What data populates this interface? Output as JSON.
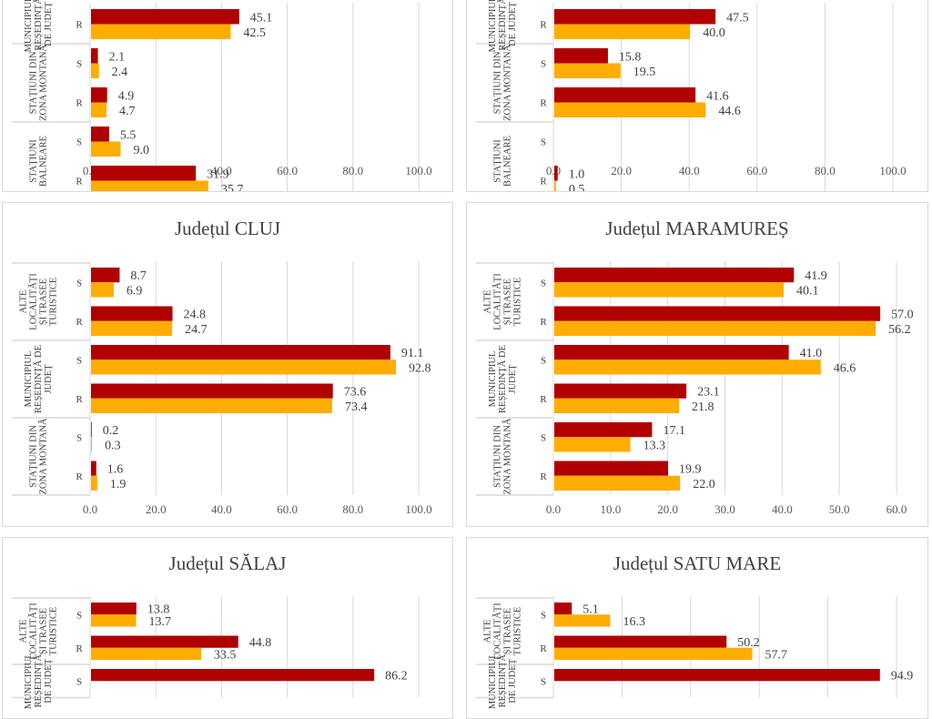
{
  "colors": {
    "series1": "#b00000",
    "series2": "#ffad00",
    "grid": "#d9d9d9",
    "text": "#404040"
  },
  "chart_data": [
    {
      "type": "bar",
      "orientation": "horizontal",
      "title": "",
      "title_visible": false,
      "xlim": [
        0,
        100
      ],
      "ticks": [
        "0.0",
        "20.0",
        "40.0",
        "60.0",
        "80.0",
        "100.0"
      ],
      "tick_values": [
        0,
        20,
        40,
        60,
        80,
        100
      ],
      "groups": [
        {
          "label": "MUNICIPIUL REȘEDINȚĂ DE JUDEȚ",
          "partial": true,
          "rows": [
            {
              "sub": "R",
              "values": [
                45.1,
                42.5
              ]
            }
          ]
        },
        {
          "label": "STAȚIUNI DIN ZONA MONTANĂ",
          "rows": [
            {
              "sub": "S",
              "values": [
                2.1,
                2.4
              ]
            },
            {
              "sub": "R",
              "values": [
                4.9,
                4.7
              ]
            }
          ]
        },
        {
          "label": "STAȚIUNI BALNEARE",
          "rows": [
            {
              "sub": "S",
              "values": [
                5.5,
                9.0
              ]
            },
            {
              "sub": "R",
              "values": [
                31.9,
                35.7
              ]
            }
          ]
        }
      ]
    },
    {
      "type": "bar",
      "orientation": "horizontal",
      "title": "",
      "title_visible": false,
      "xlim": [
        0,
        100
      ],
      "ticks": [
        "0.0",
        "20.0",
        "40.0",
        "60.0",
        "80.0",
        "100.0"
      ],
      "tick_values": [
        0,
        20,
        40,
        60,
        80,
        100
      ],
      "groups": [
        {
          "label": "MUNICIPIUL REȘEDINȚĂ DE JUDEȚ",
          "partial": true,
          "rows": [
            {
              "sub": "R",
              "values": [
                47.5,
                40.0
              ]
            }
          ]
        },
        {
          "label": "STAȚIUNI DIN ZONA MONTANĂ",
          "rows": [
            {
              "sub": "S",
              "values": [
                15.8,
                19.5
              ]
            },
            {
              "sub": "R",
              "values": [
                41.6,
                44.6
              ]
            }
          ]
        },
        {
          "label": "STAȚIUNI BALNEARE",
          "rows": [
            {
              "sub": "S",
              "values": [
                null,
                null
              ]
            },
            {
              "sub": "R",
              "values": [
                1.0,
                0.5
              ]
            }
          ]
        }
      ]
    },
    {
      "type": "bar",
      "orientation": "horizontal",
      "title": "Județul CLUJ",
      "title_visible": true,
      "xlim": [
        0,
        100
      ],
      "ticks": [
        "0.0",
        "20.0",
        "40.0",
        "60.0",
        "80.0",
        "100.0"
      ],
      "tick_values": [
        0,
        20,
        40,
        60,
        80,
        100
      ],
      "groups": [
        {
          "label": "ALTE LOCALITĂȚI ȘI TRASEE TURISTICE",
          "rows": [
            {
              "sub": "S",
              "values": [
                8.7,
                6.9
              ]
            },
            {
              "sub": "R",
              "values": [
                24.8,
                24.7
              ]
            }
          ]
        },
        {
          "label": "MUNICIPIUL REȘEDINȚĂ DE JUDEȚ",
          "rows": [
            {
              "sub": "S",
              "values": [
                91.1,
                92.8
              ]
            },
            {
              "sub": "R",
              "values": [
                73.6,
                73.4
              ]
            }
          ]
        },
        {
          "label": "STAȚIUNI DIN ZONA MONTANĂ",
          "rows": [
            {
              "sub": "S",
              "values": [
                0.2,
                0.3
              ]
            },
            {
              "sub": "R",
              "values": [
                1.6,
                1.9
              ]
            }
          ]
        }
      ]
    },
    {
      "type": "bar",
      "orientation": "horizontal",
      "title": "Județul MARAMUREȘ",
      "title_visible": true,
      "xlim": [
        0,
        60
      ],
      "ticks": [
        "0.0",
        "10.0",
        "20.0",
        "30.0",
        "40.0",
        "50.0",
        "60.0"
      ],
      "tick_values": [
        0,
        10,
        20,
        30,
        40,
        50,
        60
      ],
      "groups": [
        {
          "label": "ALTE LOCALITĂȚI ȘI TRASEE TURISTICE",
          "rows": [
            {
              "sub": "S",
              "values": [
                41.9,
                40.1
              ]
            },
            {
              "sub": "R",
              "values": [
                57.0,
                56.2
              ]
            }
          ]
        },
        {
          "label": "MUNICIPIUL REȘEDINȚĂ DE JUDEȚ",
          "rows": [
            {
              "sub": "S",
              "values": [
                41.0,
                46.6
              ]
            },
            {
              "sub": "R",
              "values": [
                23.1,
                21.8
              ]
            }
          ]
        },
        {
          "label": "STAȚIUNI DIN ZONA MONTANĂ",
          "rows": [
            {
              "sub": "S",
              "values": [
                17.1,
                13.3
              ]
            },
            {
              "sub": "R",
              "values": [
                19.9,
                22.0
              ]
            }
          ]
        }
      ]
    },
    {
      "type": "bar",
      "orientation": "horizontal",
      "title": "Județul SĂLAJ",
      "title_visible": true,
      "xlim": [
        0,
        100
      ],
      "ticks": [],
      "tick_values": [
        0,
        20,
        40,
        60,
        80,
        100
      ],
      "groups": [
        {
          "label": "ALTE LOCALITĂȚI ȘI TRASEE TURISTICE",
          "rows": [
            {
              "sub": "S",
              "values": [
                13.8,
                13.7
              ]
            },
            {
              "sub": "R",
              "values": [
                44.8,
                33.5
              ]
            }
          ]
        },
        {
          "label": "MUNICIPIUL REȘEDINȚĂ DE JUDEȚ",
          "partial": true,
          "rows": [
            {
              "sub": "S",
              "values": [
                86.2,
                null
              ]
            }
          ]
        }
      ]
    },
    {
      "type": "bar",
      "orientation": "horizontal",
      "title": "Județul SATU MARE",
      "title_visible": true,
      "xlim": [
        0,
        100
      ],
      "ticks": [],
      "tick_values": [
        0,
        20,
        40,
        60,
        80,
        100
      ],
      "groups": [
        {
          "label": "ALTE LOCALITĂȚI ȘI TRASEE TURISTICE",
          "rows": [
            {
              "sub": "S",
              "values": [
                5.1,
                16.3
              ]
            },
            {
              "sub": "R",
              "values": [
                50.2,
                57.7
              ]
            }
          ]
        },
        {
          "label": "MUNICIPIUL REȘEDINȚĂ DE JUDEȚ",
          "partial": true,
          "rows": [
            {
              "sub": "S",
              "values": [
                94.9,
                null
              ]
            }
          ]
        }
      ]
    }
  ]
}
